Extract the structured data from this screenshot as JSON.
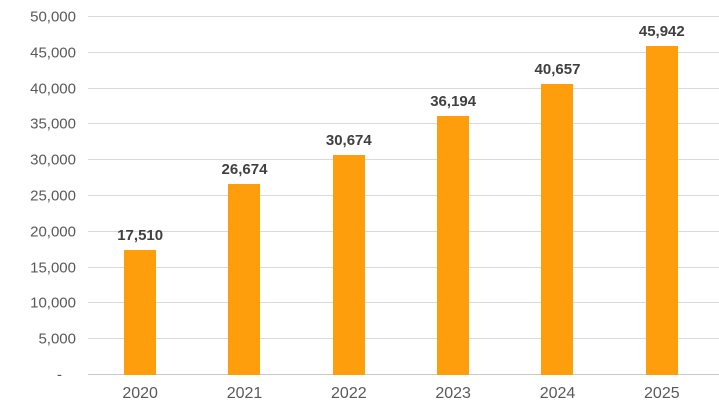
{
  "chart_data": {
    "type": "bar",
    "title": "",
    "xlabel": "",
    "ylabel": "",
    "categories": [
      "2020",
      "2021",
      "2022",
      "2023",
      "2024",
      "2025"
    ],
    "values": [
      17510,
      26674,
      30674,
      36194,
      40657,
      45942
    ],
    "data_labels": [
      "17,510",
      "26,674",
      "30,674",
      "36,194",
      "40,657",
      "45,942"
    ],
    "y_ticks": [
      {
        "value": 0,
        "label": "-"
      },
      {
        "value": 5000,
        "label": "5,000"
      },
      {
        "value": 10000,
        "label": "10,000"
      },
      {
        "value": 15000,
        "label": "15,000"
      },
      {
        "value": 20000,
        "label": "20,000"
      },
      {
        "value": 25000,
        "label": "25,000"
      },
      {
        "value": 30000,
        "label": "30,000"
      },
      {
        "value": 35000,
        "label": "35,000"
      },
      {
        "value": 40000,
        "label": "40,000"
      },
      {
        "value": 45000,
        "label": "45,000"
      },
      {
        "value": 50000,
        "label": "50,000"
      }
    ],
    "ylim": [
      0,
      50000
    ],
    "grid": true,
    "legend": false,
    "colors": {
      "bar": "#FF9E0D",
      "gridline": "#D9D9D9",
      "axis_line": "#C9C9C9",
      "tick_text": "#595959",
      "data_label_text": "#404040"
    }
  }
}
